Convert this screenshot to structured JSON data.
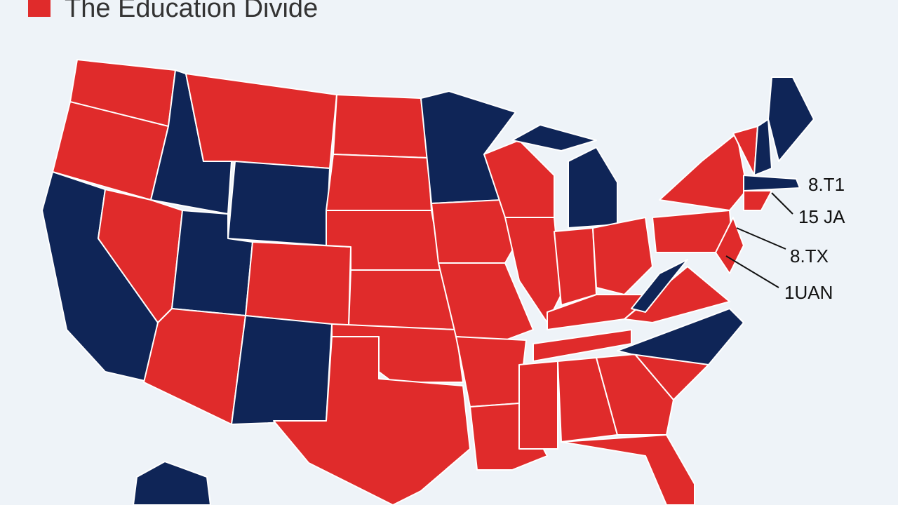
{
  "header": {
    "title": "The Education Divide"
  },
  "callouts": [
    {
      "label": "8.T1"
    },
    {
      "label": "15 JA"
    },
    {
      "label": "8.TX"
    },
    {
      "label": "1UAN"
    }
  ]
}
